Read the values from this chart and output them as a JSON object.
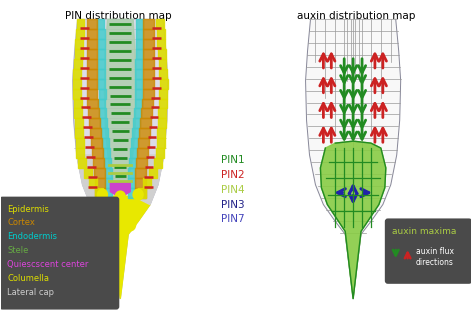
{
  "title_left": "PIN distribution map",
  "title_right": "auxin distribution map",
  "bg_color": "#ffffff",
  "legend_box_color": "#4a4a4a",
  "legend_items": [
    {
      "label": "Epidermis",
      "color": "#dddd00"
    },
    {
      "label": "Cortex",
      "color": "#cc8800"
    },
    {
      "label": "Endodermis",
      "color": "#00cccc"
    },
    {
      "label": "Stele",
      "color": "#66aa44"
    },
    {
      "label": "Quiescscent center",
      "color": "#dd44dd"
    },
    {
      "label": "Columella",
      "color": "#dddd00"
    },
    {
      "label": "Lateral cap",
      "color": "#cccccc"
    }
  ],
  "pin_legend": [
    {
      "label": "PIN1",
      "color": "#228B22"
    },
    {
      "label": "PIN2",
      "color": "#cc2222"
    },
    {
      "label": "PIN4",
      "color": "#aacc44"
    },
    {
      "label": "PIN3",
      "color": "#222288"
    },
    {
      "label": "PIN7",
      "color": "#4444bb"
    }
  ],
  "auxin_legend_title": "auxin maxima",
  "auxin_legend_title_color": "#aacc44",
  "auxin_flux_label": "auxin flux\ndirections",
  "arrow_down_color": "#228B22",
  "arrow_up_color": "#cc2222",
  "cell_outline": "#aaaacc",
  "root_fill": "#dcdce8"
}
